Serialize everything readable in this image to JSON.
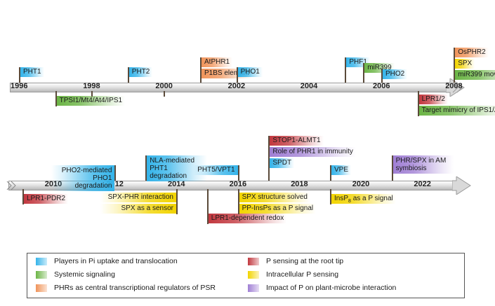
{
  "colors": {
    "uptake": "#35b4ea",
    "systemic": "#6cb546",
    "phr": "#f0945a",
    "root_tip": "#c2383f",
    "intracellular": "#f2d400",
    "microbe": "#a07fd4"
  },
  "timeline1": {
    "years": [
      "1996",
      "1998",
      "2000",
      "2002",
      "2004",
      "2006",
      "2008"
    ],
    "events": [
      {
        "year": "1996",
        "side": "up",
        "level": 1,
        "labels": [
          {
            "text": "PHT1",
            "cat": "uptake"
          }
        ]
      },
      {
        "year": "1997",
        "side": "down",
        "level": 1,
        "labels": [
          {
            "text": "TPSI1/Mt4/At4/IPS1",
            "cat": "systemic"
          }
        ]
      },
      {
        "year": "1998",
        "side": "down",
        "level": 0,
        "labels": []
      },
      {
        "year": "1999",
        "side": "up",
        "level": 1,
        "labels": [
          {
            "text": "PHT2",
            "cat": "uptake"
          }
        ]
      },
      {
        "year": "2000",
        "side": "down",
        "level": 0,
        "labels": []
      },
      {
        "year": "2001",
        "side": "up",
        "level": 2,
        "labels": [
          {
            "text": "AtPHR1",
            "cat": "phr"
          },
          {
            "text": "P1BS element",
            "cat": "phr"
          }
        ]
      },
      {
        "year": "2002",
        "side": "up",
        "level": 1,
        "labels": [
          {
            "text": "PHO1",
            "cat": "uptake"
          }
        ]
      },
      {
        "year": "2005",
        "side": "up",
        "level": 2,
        "labels": [
          {
            "text": "PHF1",
            "cat": "uptake"
          }
        ]
      },
      {
        "year": "2005.5",
        "side": "up",
        "level": 1.4,
        "labels": [
          {
            "text": "miR399",
            "cat": "systemic"
          }
        ]
      },
      {
        "year": "2006",
        "side": "up",
        "level": 0.8,
        "labels": [
          {
            "text": "PHO2",
            "cat": "uptake"
          }
        ]
      },
      {
        "year": "2008",
        "side": "up",
        "level": 3,
        "labels": [
          {
            "text": "OsPHR2",
            "cat": "phr"
          },
          {
            "text": "SPX",
            "cat": "intracellular"
          },
          {
            "text": "miR399 movement",
            "cat": "systemic"
          }
        ]
      },
      {
        "year": "2007",
        "side": "down",
        "level": 2,
        "labels": [
          {
            "text": "LPR1/2",
            "cat": "root_tip"
          },
          {
            "text": "Target mimicry of IPS1/At4",
            "cat": "systemic"
          }
        ]
      }
    ]
  },
  "timeline2": {
    "years": [
      "2010",
      "2012",
      "2014",
      "2016",
      "2018",
      "2020",
      "2022"
    ],
    "events": [
      {
        "year": "2009",
        "side": "down",
        "level": 1,
        "labels": [
          {
            "text": "LPR1-PDR2",
            "cat": "root_tip"
          }
        ]
      },
      {
        "year": "2012",
        "side": "up",
        "level": 1,
        "labels": [
          {
            "text": "PHO2-mediated PHO1 degradation",
            "cat": "uptake",
            "multi": true
          }
        ]
      },
      {
        "year": "2013",
        "side": "up",
        "level": 2,
        "labels": [
          {
            "text": "NLA-mediated PHT1 degradation",
            "cat": "uptake",
            "multi": true
          }
        ]
      },
      {
        "year": "2014",
        "side": "down",
        "level": 2,
        "labels": [
          {
            "text": "SPX-PHR interaction",
            "cat": "intracellular"
          },
          {
            "text": "SPX as a sensor",
            "cat": "intracellular"
          }
        ]
      },
      {
        "year": "2015",
        "side": "down",
        "level": 3,
        "labels": [
          {
            "text": "LPR1-dependent redox",
            "cat": "root_tip"
          }
        ]
      },
      {
        "year": "2016",
        "side": "up",
        "level": 1,
        "labels": [
          {
            "text": "PHT5/VPT1",
            "cat": "uptake"
          }
        ]
      },
      {
        "year": "2016",
        "side": "down",
        "level": 2,
        "labels": [
          {
            "text": "SPX structure solved",
            "cat": "intracellular"
          },
          {
            "text": "PP-InsPs as a P signal",
            "cat": "intracellular"
          }
        ]
      },
      {
        "year": "2017",
        "side": "up",
        "level": 4,
        "labels": [
          {
            "text": "STOP1-ALMT1",
            "cat": "root_tip"
          },
          {
            "text": "Role of PHR1 in immunity",
            "cat": "microbe"
          },
          {
            "text": "SPDT",
            "cat": "uptake"
          }
        ]
      },
      {
        "year": "2019",
        "side": "up",
        "level": 1,
        "labels": [
          {
            "text": "VPE",
            "cat": "uptake"
          }
        ]
      },
      {
        "year": "2019",
        "side": "down",
        "level": 1,
        "labels": [
          {
            "text": "InsP8 as a P signal",
            "cat": "intracellular",
            "sub": true
          }
        ]
      },
      {
        "year": "2021",
        "side": "up",
        "level": 2,
        "labels": [
          {
            "text": "PHR/SPX in AM symbiosis",
            "cat": "microbe",
            "multi": true
          }
        ]
      }
    ]
  },
  "legend": [
    {
      "text": "Players in Pi uptake and translocation",
      "cat": "uptake"
    },
    {
      "text": "Systemic signaling",
      "cat": "systemic"
    },
    {
      "text": "PHRs as central transcriptional regulators of PSR",
      "cat": "phr"
    },
    {
      "text": "P sensing at the root tip",
      "cat": "root_tip"
    },
    {
      "text": "Intracellular P sensing",
      "cat": "intracellular"
    },
    {
      "text": "Impact of P on plant-microbe interaction",
      "cat": "microbe"
    }
  ]
}
